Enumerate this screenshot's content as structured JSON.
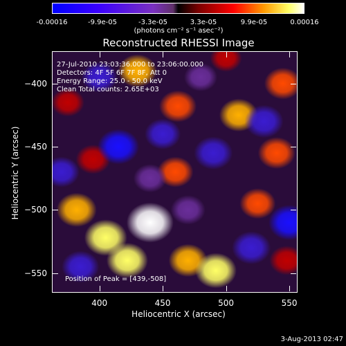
{
  "title": "Reconstructed RHESSI Image",
  "colorbar": {
    "ticks": [
      "-0.00016",
      "-9.9e-05",
      "-3.3e-05",
      "3.3e-05",
      "9.9e-05",
      "0.00016"
    ],
    "unit": "(photons cm⁻² s⁻¹ asec⁻²)"
  },
  "annotations": {
    "time": "27-Jul-2010 23:03:36.000 to 23:06:00.000",
    "detectors": "Detectors: 4F 5F 6F 7F 8F, Att 0",
    "energy": "Energy Range: 25.0 - 50.0 keV",
    "clean": "Clean     Total counts: 2.65E+03",
    "peak": "Position of Peak = [439,-508]"
  },
  "footer": {
    "timestamp": "3-Aug-2013 02:47"
  },
  "chart_data": {
    "type": "heatmap",
    "title": "Reconstructed RHESSI Image",
    "xlabel": "Heliocentric X (arcsec)",
    "ylabel": "Heliocentric Y (arcsec)",
    "xlim": [
      363,
      556
    ],
    "ylim": [
      -565,
      -375
    ],
    "xticks": [
      400,
      450,
      500,
      550
    ],
    "yticks": [
      -400,
      -450,
      -500,
      -550
    ],
    "zlim": [
      -0.00016,
      0.00016
    ],
    "peak_position": [
      439,
      -508
    ],
    "blobs": [
      {
        "x": 440,
        "y": -510,
        "value": 0.00016
      },
      {
        "x": 405,
        "y": -522,
        "value": 0.00013
      },
      {
        "x": 422,
        "y": -540,
        "value": 0.00012
      },
      {
        "x": 382,
        "y": -500,
        "value": 0.00011
      },
      {
        "x": 470,
        "y": -540,
        "value": 0.0001
      },
      {
        "x": 492,
        "y": -548,
        "value": 0.00012
      },
      {
        "x": 430,
        "y": -390,
        "value": 0.0001
      },
      {
        "x": 462,
        "y": -418,
        "value": 9e-05
      },
      {
        "x": 510,
        "y": -425,
        "value": 0.0001
      },
      {
        "x": 545,
        "y": -400,
        "value": 9e-05
      },
      {
        "x": 540,
        "y": -455,
        "value": 9e-05
      },
      {
        "x": 395,
        "y": -460,
        "value": 7e-05
      },
      {
        "x": 460,
        "y": -470,
        "value": 8e-05
      },
      {
        "x": 525,
        "y": -495,
        "value": 8e-05
      },
      {
        "x": 548,
        "y": -540,
        "value": 7e-05
      },
      {
        "x": 375,
        "y": -415,
        "value": 6e-05
      },
      {
        "x": 500,
        "y": -380,
        "value": 5e-05
      },
      {
        "x": 415,
        "y": -450,
        "value": -0.00012
      },
      {
        "x": 490,
        "y": -455,
        "value": -0.0001
      },
      {
        "x": 450,
        "y": -440,
        "value": -8e-05
      },
      {
        "x": 550,
        "y": -510,
        "value": -0.00012
      },
      {
        "x": 385,
        "y": -545,
        "value": -9e-05
      },
      {
        "x": 520,
        "y": -530,
        "value": -0.0001
      },
      {
        "x": 400,
        "y": -395,
        "value": -8e-05
      },
      {
        "x": 530,
        "y": -430,
        "value": -0.0001
      },
      {
        "x": 470,
        "y": -500,
        "value": -7e-05
      },
      {
        "x": 440,
        "y": -475,
        "value": -6e-05
      },
      {
        "x": 370,
        "y": -470,
        "value": -8e-05
      },
      {
        "x": 480,
        "y": -395,
        "value": -6e-05
      }
    ]
  }
}
